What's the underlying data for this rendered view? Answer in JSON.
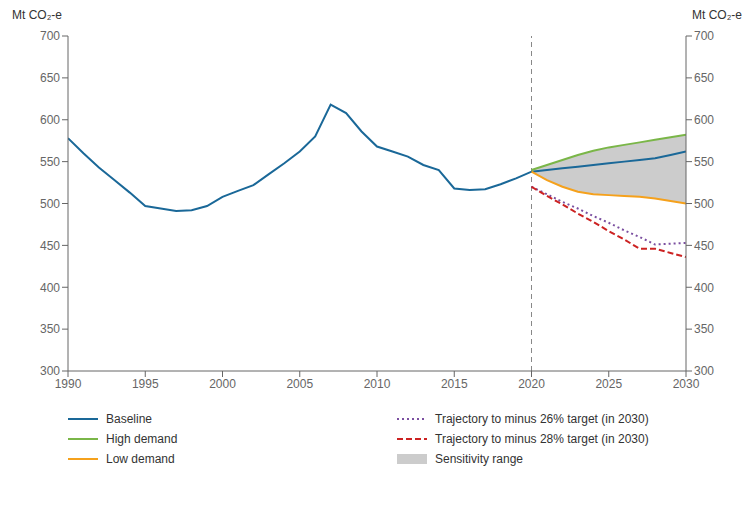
{
  "chart_data": {
    "type": "line",
    "ylabel": "Mt CO₂-e",
    "y2label": "Mt CO₂-e",
    "x": [
      1990,
      1991,
      1992,
      1993,
      1994,
      1995,
      1996,
      1997,
      1998,
      1999,
      2000,
      2001,
      2002,
      2003,
      2004,
      2005,
      2006,
      2007,
      2008,
      2009,
      2010,
      2011,
      2012,
      2013,
      2014,
      2015,
      2016,
      2017,
      2018,
      2019,
      2020,
      2021,
      2022,
      2023,
      2024,
      2025,
      2026,
      2027,
      2028,
      2029,
      2030
    ],
    "series": [
      {
        "name": "Baseline",
        "color": "#1a6898",
        "line_style": "solid",
        "values": [
          578,
          560,
          543,
          528,
          513,
          497,
          494,
          491,
          492,
          497,
          508,
          515,
          522,
          535,
          548,
          562,
          580,
          618,
          608,
          586,
          568,
          562,
          556,
          546,
          540,
          518,
          516,
          517,
          523,
          530,
          538,
          540,
          542,
          544,
          546,
          548,
          550,
          552,
          554,
          558,
          562
        ]
      },
      {
        "name": "Trajectory to minus 26% target (in 2030)",
        "color": "#7b4fa0",
        "line_style": "dotted",
        "values": [
          null,
          null,
          null,
          null,
          null,
          null,
          null,
          null,
          null,
          null,
          null,
          null,
          null,
          null,
          null,
          null,
          null,
          null,
          null,
          null,
          null,
          null,
          null,
          null,
          null,
          null,
          null,
          null,
          null,
          null,
          520,
          511,
          502,
          494,
          485,
          477,
          468,
          460,
          451,
          452,
          453
        ]
      },
      {
        "name": "High demand",
        "color": "#7ab648",
        "line_style": "solid",
        "values": [
          null,
          null,
          null,
          null,
          null,
          null,
          null,
          null,
          null,
          null,
          null,
          null,
          null,
          null,
          null,
          null,
          null,
          null,
          null,
          null,
          null,
          null,
          null,
          null,
          null,
          null,
          null,
          null,
          null,
          null,
          540,
          546,
          552,
          558,
          563,
          567,
          570,
          573,
          576,
          579,
          582
        ]
      },
      {
        "name": "Trajectory to minus 28% target (in 2030)",
        "color": "#cc2222",
        "line_style": "dashed",
        "values": [
          null,
          null,
          null,
          null,
          null,
          null,
          null,
          null,
          null,
          null,
          null,
          null,
          null,
          null,
          null,
          null,
          null,
          null,
          null,
          null,
          null,
          null,
          null,
          null,
          null,
          null,
          null,
          null,
          null,
          null,
          520,
          509,
          499,
          488,
          478,
          467,
          457,
          446,
          446,
          441,
          436
        ]
      },
      {
        "name": "Low demand",
        "color": "#f5a11c",
        "line_style": "solid",
        "values": [
          null,
          null,
          null,
          null,
          null,
          null,
          null,
          null,
          null,
          null,
          null,
          null,
          null,
          null,
          null,
          null,
          null,
          null,
          null,
          null,
          null,
          null,
          null,
          null,
          null,
          null,
          null,
          null,
          null,
          null,
          538,
          528,
          520,
          514,
          511,
          510,
          509,
          508,
          506,
          503,
          500
        ]
      },
      {
        "name": "Sensitivity range",
        "type": "range",
        "color": "#cccccc",
        "lower": [
          null,
          null,
          null,
          null,
          null,
          null,
          null,
          null,
          null,
          null,
          null,
          null,
          null,
          null,
          null,
          null,
          null,
          null,
          null,
          null,
          null,
          null,
          null,
          null,
          null,
          null,
          null,
          null,
          null,
          null,
          538,
          528,
          520,
          514,
          511,
          510,
          509,
          508,
          506,
          503,
          500
        ],
        "upper": [
          null,
          null,
          null,
          null,
          null,
          null,
          null,
          null,
          null,
          null,
          null,
          null,
          null,
          null,
          null,
          null,
          null,
          null,
          null,
          null,
          null,
          null,
          null,
          null,
          null,
          null,
          null,
          null,
          null,
          null,
          540,
          546,
          552,
          558,
          563,
          567,
          570,
          573,
          576,
          579,
          582
        ]
      }
    ],
    "vlines": [
      2020
    ],
    "xlim": [
      1990,
      2030
    ],
    "xticks": [
      1990,
      1995,
      2000,
      2005,
      2010,
      2015,
      2020,
      2025,
      2030
    ],
    "ylim": [
      300,
      700
    ],
    "yticks": [
      300,
      350,
      400,
      450,
      500,
      550,
      600,
      650,
      700
    ],
    "y2lim": [
      300,
      700
    ],
    "y2ticks": [
      300,
      350,
      400,
      450,
      500,
      550,
      600,
      650,
      700
    ],
    "grid": false,
    "legend": "bottom"
  }
}
